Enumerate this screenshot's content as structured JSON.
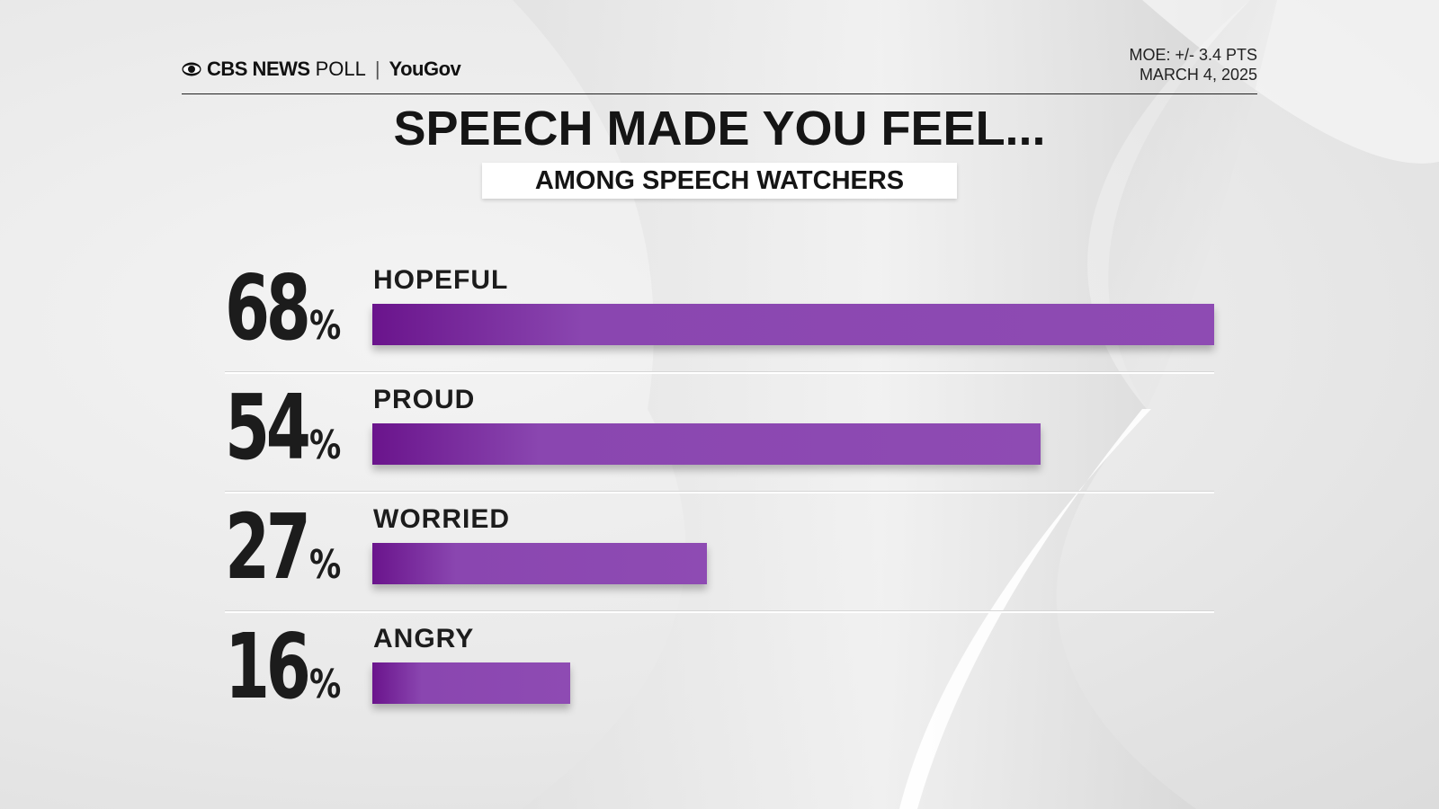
{
  "header": {
    "brand_cbs": "CBS NEWS",
    "brand_poll": "POLL",
    "brand_sep": "|",
    "brand_yougov": "YouGov",
    "moe": "MOE: +/- 3.4 PTS",
    "date": "MARCH 4, 2025"
  },
  "chart_data": {
    "type": "bar",
    "orientation": "horizontal",
    "title": "SPEECH MADE YOU FEEL...",
    "subtitle": "AMONG SPEECH WATCHERS",
    "categories": [
      "HOPEFUL",
      "PROUD",
      "WORRIED",
      "ANGRY"
    ],
    "values": [
      68,
      54,
      27,
      16
    ],
    "value_labels": [
      "68",
      "54",
      "27",
      "16"
    ],
    "unit": "%",
    "xlim": [
      0,
      68
    ],
    "grid": false,
    "bar_color": "#8e4bb3",
    "bar_color_dark": "#6a148c"
  }
}
